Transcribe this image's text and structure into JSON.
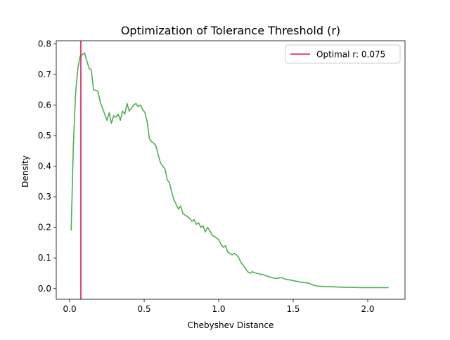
{
  "chart_data": {
    "type": "line",
    "title": "Optimization of Tolerance Threshold (r)",
    "xlabel": "Chebyshev Distance",
    "ylabel": "Density",
    "xlim": [
      -0.09,
      2.25
    ],
    "ylim": [
      -0.035,
      0.81
    ],
    "xticks": [
      0.0,
      0.5,
      1.0,
      1.5,
      2.0
    ],
    "xtick_labels": [
      "0.0",
      "0.5",
      "1.0",
      "1.5",
      "2.0"
    ],
    "yticks": [
      0.0,
      0.1,
      0.2,
      0.3,
      0.4,
      0.5,
      0.6,
      0.7,
      0.8
    ],
    "ytick_labels": [
      "0.0",
      "0.1",
      "0.2",
      "0.3",
      "0.4",
      "0.5",
      "0.6",
      "0.7",
      "0.8"
    ],
    "grid": false,
    "legend": {
      "position": "top-right",
      "entries": [
        "Optimal r: 0.075"
      ]
    },
    "colors": {
      "density": "#4caf50",
      "optimal": "#d81b60"
    },
    "optimal_r": 0.075,
    "series": [
      {
        "type": "line",
        "x": [
          0.01,
          0.025,
          0.04,
          0.055,
          0.07,
          0.085,
          0.1,
          0.115,
          0.13,
          0.145,
          0.16,
          0.175,
          0.19,
          0.205,
          0.22,
          0.235,
          0.25,
          0.265,
          0.28,
          0.295,
          0.31,
          0.325,
          0.34,
          0.355,
          0.37,
          0.385,
          0.4,
          0.415,
          0.43,
          0.445,
          0.46,
          0.475,
          0.49,
          0.505,
          0.52,
          0.535,
          0.55,
          0.565,
          0.58,
          0.595,
          0.61,
          0.625,
          0.64,
          0.655,
          0.67,
          0.685,
          0.7,
          0.715,
          0.73,
          0.745,
          0.76,
          0.775,
          0.79,
          0.805,
          0.82,
          0.835,
          0.85,
          0.865,
          0.88,
          0.895,
          0.91,
          0.925,
          0.94,
          0.955,
          0.97,
          0.985,
          1.0,
          1.015,
          1.03,
          1.045,
          1.06,
          1.075,
          1.09,
          1.105,
          1.12,
          1.135,
          1.15,
          1.165,
          1.18,
          1.195,
          1.21,
          1.225,
          1.24,
          1.255,
          1.27,
          1.3,
          1.33,
          1.36,
          1.39,
          1.42,
          1.45,
          1.48,
          1.51,
          1.54,
          1.57,
          1.6,
          1.63,
          1.66,
          1.7,
          1.75,
          1.8,
          1.85,
          1.9,
          1.95,
          2.0,
          2.05,
          2.1,
          2.14
        ],
        "y": [
          0.19,
          0.47,
          0.64,
          0.72,
          0.76,
          0.765,
          0.77,
          0.745,
          0.72,
          0.715,
          0.65,
          0.648,
          0.645,
          0.61,
          0.59,
          0.57,
          0.55,
          0.575,
          0.54,
          0.565,
          0.56,
          0.57,
          0.55,
          0.58,
          0.57,
          0.605,
          0.58,
          0.59,
          0.6,
          0.605,
          0.595,
          0.6,
          0.585,
          0.575,
          0.545,
          0.49,
          0.48,
          0.475,
          0.465,
          0.435,
          0.41,
          0.4,
          0.39,
          0.355,
          0.345,
          0.315,
          0.29,
          0.275,
          0.26,
          0.27,
          0.245,
          0.24,
          0.235,
          0.23,
          0.22,
          0.225,
          0.21,
          0.215,
          0.2,
          0.205,
          0.185,
          0.2,
          0.19,
          0.175,
          0.17,
          0.165,
          0.16,
          0.145,
          0.135,
          0.14,
          0.12,
          0.115,
          0.11,
          0.115,
          0.11,
          0.1,
          0.085,
          0.075,
          0.065,
          0.055,
          0.05,
          0.055,
          0.052,
          0.05,
          0.048,
          0.045,
          0.04,
          0.035,
          0.033,
          0.036,
          0.03,
          0.028,
          0.025,
          0.022,
          0.02,
          0.018,
          0.012,
          0.008,
          0.007,
          0.006,
          0.005,
          0.004,
          0.004,
          0.003,
          0.003,
          0.003,
          0.003,
          0.003
        ]
      },
      {
        "type": "vline",
        "name": "Optimal r: 0.075",
        "x": 0.075
      }
    ]
  }
}
